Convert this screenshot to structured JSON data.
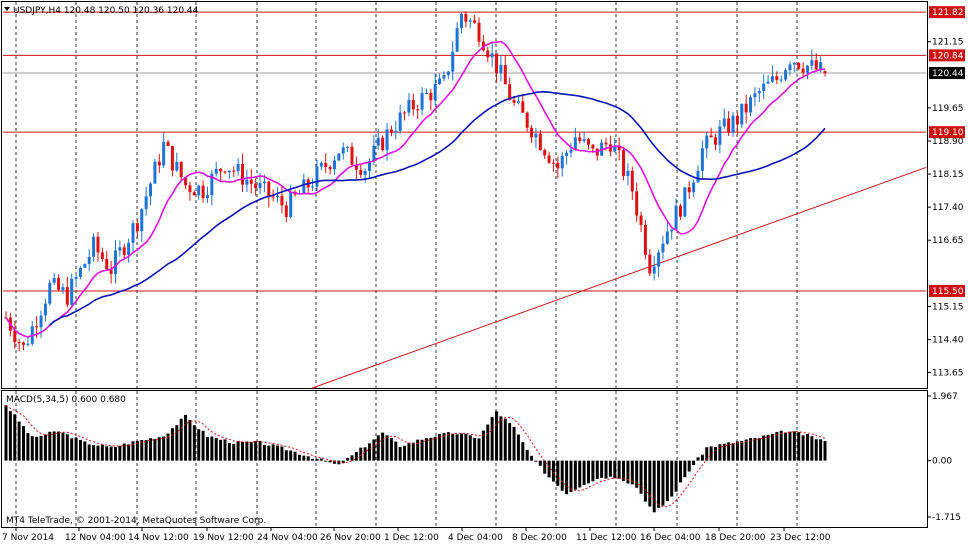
{
  "window": {
    "symbol_header": "USDJPY,H4  120.48 120.50 120.36 120.44",
    "copyright": "MT4 TeleTrade, © 2001-2014, MetaQuotes Software Corp."
  },
  "indicator": {
    "label": "MACD(5,34,5) 0.600 0.680"
  },
  "colors": {
    "background": "#ffffff",
    "candle_up": "#1e73d6",
    "candle_down": "#e01010",
    "ma_fast": "#e010e0",
    "ma_slow": "#0a14b4",
    "level_line": "#d01010",
    "trend_line": "#c81010",
    "bid_line": "#a0a0a0",
    "macd_bar": "#000000",
    "macd_signal": "#e01010",
    "grid": "#000000"
  },
  "chart_data": {
    "type": "candlestick",
    "symbol": "USDJPY",
    "timeframe": "H4",
    "ohlc_current": {
      "open": 120.48,
      "high": 120.5,
      "low": 120.36,
      "close": 120.44
    },
    "ylim": [
      113.3,
      122.05
    ],
    "price_ticks": [
      "121.15",
      "119.65",
      "118.90",
      "118.15",
      "117.40",
      "116.65",
      "115.15",
      "114.40",
      "113.65"
    ],
    "price_tick_values": [
      121.15,
      119.65,
      118.9,
      118.15,
      117.4,
      116.65,
      115.15,
      114.4,
      113.65
    ],
    "x_labels": [
      "7 Nov 2014",
      "12 Nov 04:00",
      "14 Nov 12:00",
      "19 Nov 12:00",
      "24 Nov 04:00",
      "26 Nov 20:00",
      "1 Dec 12:00",
      "4 Dec 04:00",
      "8 Dec 20:00",
      "11 Dec 12:00",
      "16 Dec 04:00",
      "18 Dec 20:00",
      "23 Dec 12:00"
    ],
    "horizontal_levels": [
      {
        "label": "121.82",
        "value": 121.82
      },
      {
        "label": "120.84",
        "value": 120.84
      },
      {
        "label": "119.10",
        "value": 119.1
      },
      {
        "label": "115.50",
        "value": 115.5
      }
    ],
    "bid_level": {
      "label": "120.44",
      "value": 120.44
    },
    "trendline": {
      "from": {
        "bar": 0.335,
        "price": 113.3
      },
      "to": {
        "bar": 1.0,
        "price": 118.3
      }
    },
    "close_path": [
      [
        0,
        114.9
      ],
      [
        4,
        114.2
      ],
      [
        10,
        115.6
      ],
      [
        14,
        115.4
      ],
      [
        20,
        116.5
      ],
      [
        24,
        116.0
      ],
      [
        30,
        117.1
      ],
      [
        36,
        118.8
      ],
      [
        41,
        117.9
      ],
      [
        45,
        117.8
      ],
      [
        50,
        118.4
      ],
      [
        58,
        117.8
      ],
      [
        64,
        117.4
      ],
      [
        70,
        118.0
      ],
      [
        76,
        118.7
      ],
      [
        82,
        118.3
      ],
      [
        88,
        119.2
      ],
      [
        94,
        119.8
      ],
      [
        100,
        120.2
      ],
      [
        104,
        121.8
      ],
      [
        108,
        121.4
      ],
      [
        112,
        120.6
      ],
      [
        116,
        119.7
      ],
      [
        120,
        119.2
      ],
      [
        126,
        118.3
      ],
      [
        130,
        119.0
      ],
      [
        134,
        118.6
      ],
      [
        138,
        118.9
      ],
      [
        143,
        117.8
      ],
      [
        147,
        116.1
      ],
      [
        151,
        116.9
      ],
      [
        155,
        117.6
      ],
      [
        159,
        118.7
      ],
      [
        163,
        119.1
      ],
      [
        167,
        119.4
      ],
      [
        172,
        120.0
      ],
      [
        176,
        120.3
      ],
      [
        179,
        120.8
      ],
      [
        183,
        120.6
      ],
      [
        187,
        120.44
      ]
    ],
    "macd": {
      "ylim": [
        -1.715,
        1.967
      ],
      "tick_labels": [
        "1.967",
        "0.00",
        "-1.715"
      ],
      "tick_values": [
        1.967,
        0.0,
        -1.715
      ],
      "bar_count": 188,
      "main_path": [
        [
          0,
          1.7
        ],
        [
          6,
          0.7
        ],
        [
          12,
          0.9
        ],
        [
          18,
          0.55
        ],
        [
          24,
          0.4
        ],
        [
          30,
          0.6
        ],
        [
          36,
          0.75
        ],
        [
          41,
          1.35
        ],
        [
          46,
          0.75
        ],
        [
          52,
          0.55
        ],
        [
          58,
          0.55
        ],
        [
          64,
          0.35
        ],
        [
          70,
          0.1
        ],
        [
          76,
          -0.15
        ],
        [
          80,
          0.25
        ],
        [
          86,
          0.85
        ],
        [
          90,
          0.45
        ],
        [
          96,
          0.7
        ],
        [
          102,
          0.85
        ],
        [
          108,
          0.7
        ],
        [
          112,
          1.5
        ],
        [
          116,
          1.0
        ],
        [
          120,
          0.1
        ],
        [
          124,
          -0.5
        ],
        [
          128,
          -1.0
        ],
        [
          132,
          -0.7
        ],
        [
          136,
          -0.5
        ],
        [
          140,
          -0.5
        ],
        [
          144,
          -0.8
        ],
        [
          148,
          -1.6
        ],
        [
          152,
          -1.1
        ],
        [
          156,
          -0.3
        ],
        [
          160,
          0.4
        ],
        [
          166,
          0.55
        ],
        [
          172,
          0.7
        ],
        [
          178,
          0.9
        ],
        [
          182,
          0.8
        ],
        [
          187,
          0.6
        ]
      ],
      "value_main": 0.6,
      "value_signal": 0.68
    }
  }
}
